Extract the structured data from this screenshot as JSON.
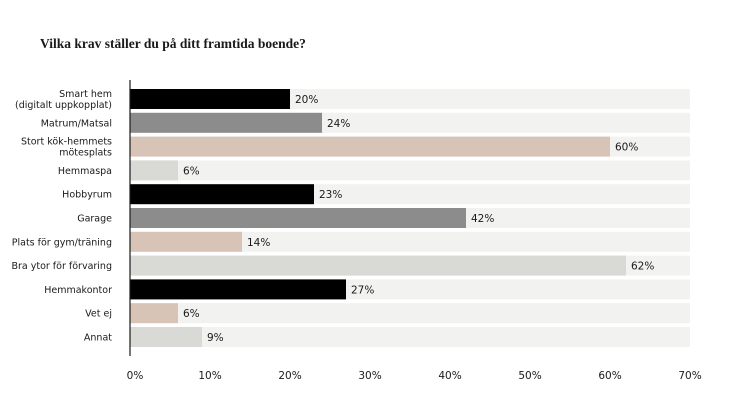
{
  "chart_data": {
    "type": "bar",
    "orientation": "horizontal",
    "title": "Vilka krav ställer du på ditt framtida boende?",
    "categories": [
      [
        "Smart hem",
        "(digitalt uppkopplat)"
      ],
      [
        "Matrum/Matsal"
      ],
      [
        "Stort kök-hemmets",
        "mötesplats"
      ],
      [
        "Hemmaspa"
      ],
      [
        "Hobbyrum"
      ],
      [
        "Garage"
      ],
      [
        "Plats för gym/träning"
      ],
      [
        "Bra ytor för förvaring"
      ],
      [
        "Hemmakontor"
      ],
      [
        "Vet ej"
      ],
      [
        "Annat"
      ]
    ],
    "values": [
      20,
      24,
      60,
      6,
      23,
      42,
      14,
      62,
      27,
      6,
      9
    ],
    "value_labels": [
      "20%",
      "24%",
      "60%",
      "6%",
      "23%",
      "42%",
      "14%",
      "62%",
      "27%",
      "6%",
      "9%"
    ],
    "bar_colors": [
      "#000000",
      "#8c8c8c",
      "#d8c3b7",
      "#d9d9d6",
      "#000000",
      "#8c8c8c",
      "#d8c3b7",
      "#d9d9d6",
      "#000000",
      "#d8c3b7",
      "#d9d9d6"
    ],
    "track_color": "#f2f2f0",
    "axis_color": "#1a1a1a",
    "xlim": [
      0,
      70
    ],
    "xticks": [
      0,
      10,
      20,
      30,
      40,
      50,
      60,
      70
    ],
    "xtick_labels": [
      "0%",
      "10%",
      "20%",
      "30%",
      "40%",
      "50%",
      "60%",
      "70%"
    ],
    "xlabel": "",
    "ylabel": "",
    "grid": false,
    "legend": "none"
  }
}
